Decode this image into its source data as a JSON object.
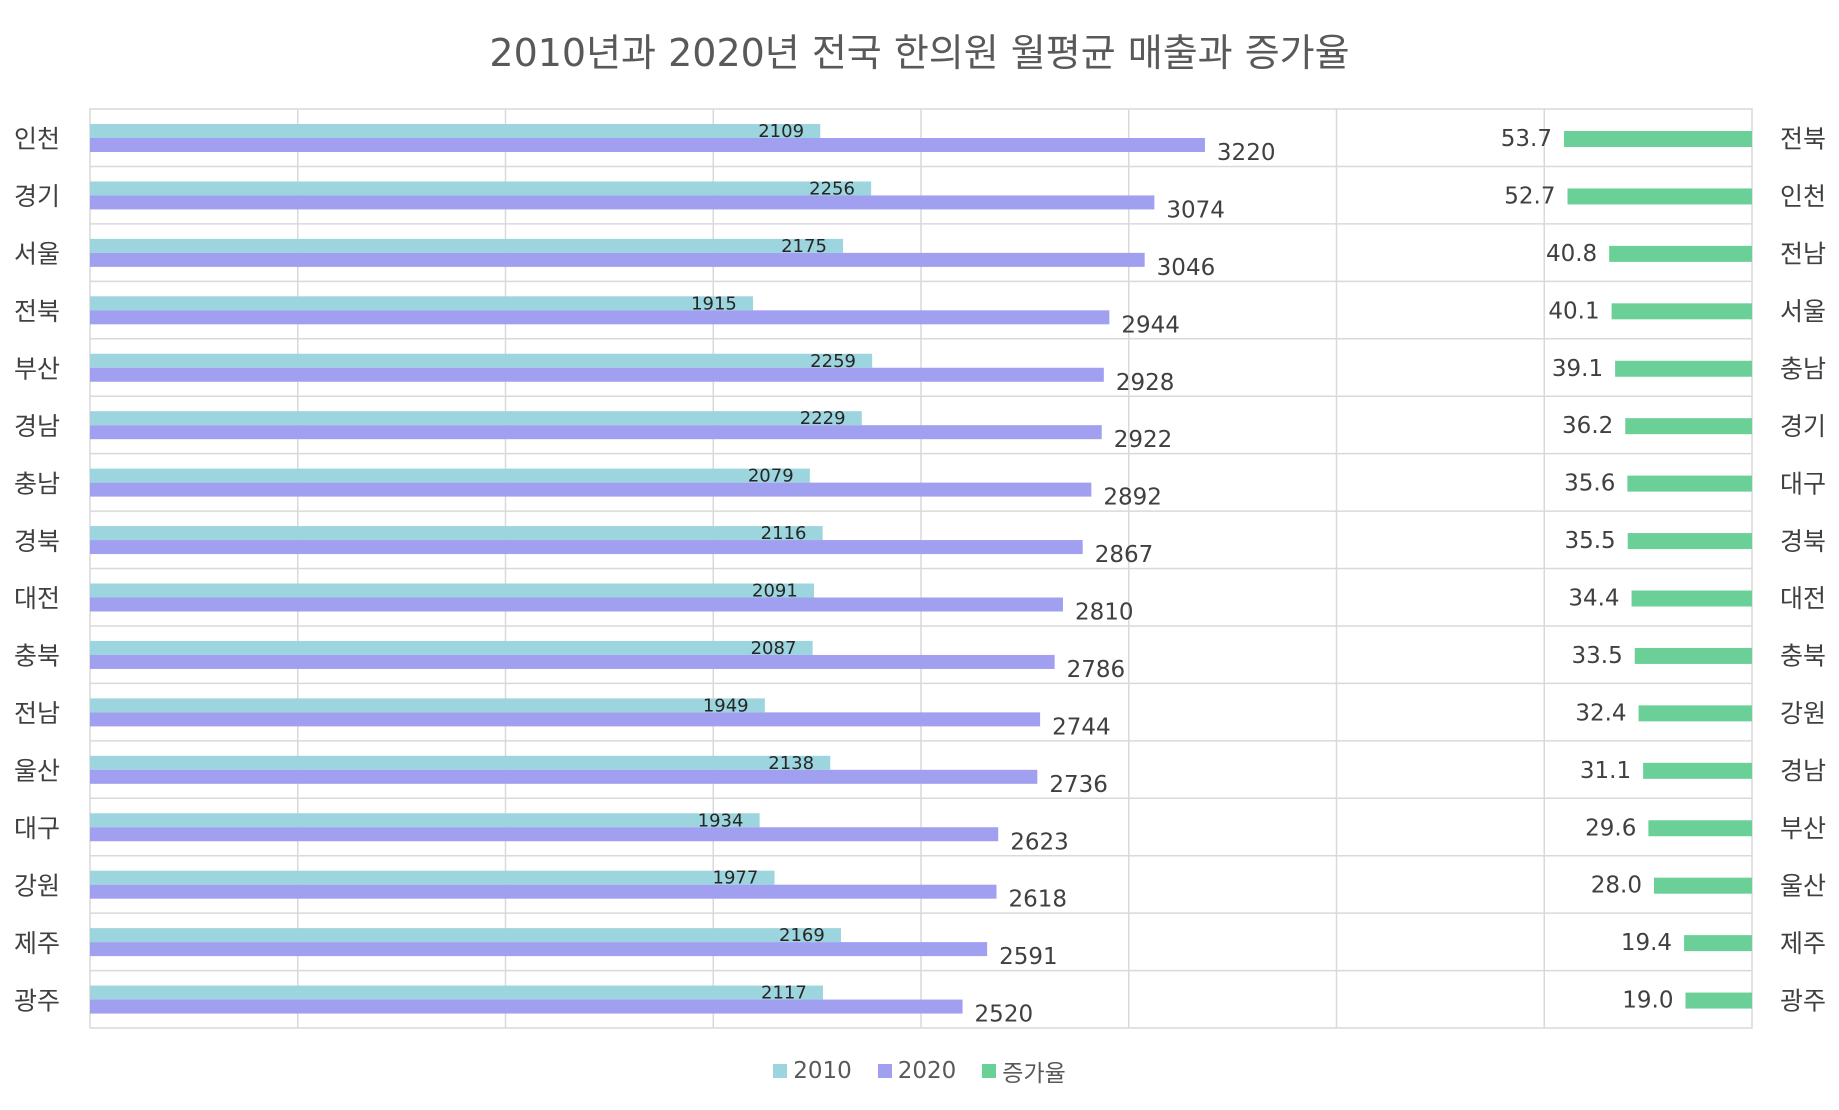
{
  "chart_data": {
    "type": "bar",
    "title": "2010년과 2020년 전국 한의원 월평균 매출과 증가율",
    "legend": {
      "position": "bottom",
      "entries": [
        "2010",
        "2020",
        "증가율"
      ]
    },
    "colors": {
      "2010": "#9DD5DE",
      "2020": "#A19FF0",
      "증가율": "#6AD098",
      "grid": "#D9D9D9"
    },
    "grid": true,
    "panels": [
      {
        "name": "revenue",
        "orientation": "horizontal",
        "categories": [
          "인천",
          "경기",
          "서울",
          "전북",
          "부산",
          "경남",
          "충남",
          "경북",
          "대전",
          "충북",
          "전남",
          "울산",
          "대구",
          "강원",
          "제주",
          "광주"
        ],
        "series": [
          {
            "name": "2010",
            "values": [
              2109,
              2256,
              2175,
              1915,
              2259,
              2229,
              2079,
              2116,
              2091,
              2087,
              1949,
              2138,
              1934,
              1977,
              2169,
              2117
            ]
          },
          {
            "name": "2020",
            "values": [
              3220,
              3074,
              3046,
              2944,
              2928,
              2922,
              2892,
              2867,
              2810,
              2786,
              2744,
              2736,
              2623,
              2618,
              2591,
              2520
            ]
          }
        ],
        "xlim": [
          0,
          4800
        ]
      },
      {
        "name": "growth",
        "orientation": "horizontal",
        "direction": "right-to-left",
        "categories": [
          "전북",
          "인천",
          "전남",
          "서울",
          "충남",
          "경기",
          "대구",
          "경북",
          "대전",
          "충북",
          "강원",
          "경남",
          "부산",
          "울산",
          "제주",
          "광주"
        ],
        "series": [
          {
            "name": "증가율",
            "values_text": [
              "53.7",
              "52.7",
              "40.8",
              "40.1",
              "39.1",
              "36.2",
              "35.6",
              "35.5",
              "34.4",
              "33.5",
              "32.4",
              "31.1",
              "29.6",
              "28.0",
              "19.4",
              "19.0"
            ]
          }
        ]
      }
    ]
  }
}
